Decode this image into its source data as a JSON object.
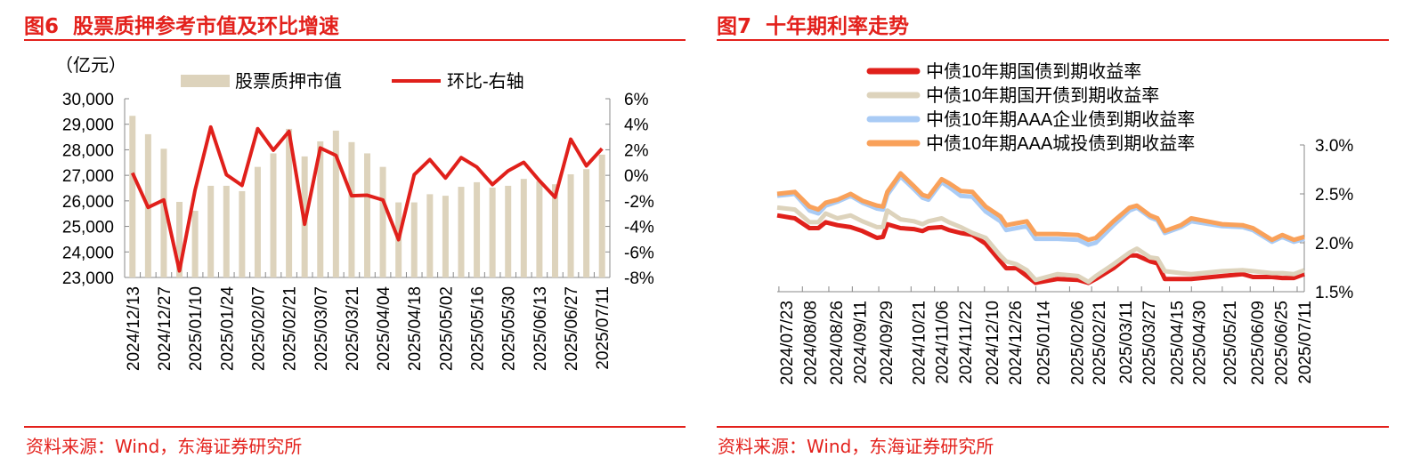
{
  "left": {
    "title": "图6  股票质押参考市值及环比增速",
    "source": "资料来源：Wind，东海证券研究所"
  },
  "right": {
    "title": "图7  十年期利率走势",
    "source": "资料来源：Wind，东海证券研究所"
  },
  "chart_data": [
    {
      "type": "bar+line",
      "unit_label": "（亿元）",
      "categories": [
        "2024/12/13",
        "2024/12/20",
        "2024/12/27",
        "2025/01/03",
        "2025/01/10",
        "2025/01/17",
        "2025/01/24",
        "2025/01/31",
        "2025/02/07",
        "2025/02/14",
        "2025/02/21",
        "2025/02/28",
        "2025/03/07",
        "2025/03/14",
        "2025/03/21",
        "2025/03/28",
        "2025/04/04",
        "2025/04/11",
        "2025/04/18",
        "2025/04/25",
        "2025/05/02",
        "2025/05/09",
        "2025/05/16",
        "2025/05/23",
        "2025/05/30",
        "2025/06/06",
        "2025/06/13",
        "2025/06/20",
        "2025/06/27",
        "2025/07/04",
        "2025/07/11"
      ],
      "tick_labels": [
        "2024/12/13",
        "2024/12/27",
        "2025/01/10",
        "2025/01/24",
        "2025/02/07",
        "2025/02/21",
        "2025/03/07",
        "2025/03/21",
        "2025/04/04",
        "2025/04/18",
        "2025/05/02",
        "2025/05/16",
        "2025/05/30",
        "2025/06/13",
        "2025/06/27",
        "2025/07/11"
      ],
      "series": [
        {
          "name": "股票质押市值",
          "axis": "left",
          "kind": "bar",
          "color": "#DDD3BC",
          "values": [
            29330,
            28610,
            28040,
            25960,
            25610,
            26590,
            26590,
            26380,
            27330,
            27860,
            28820,
            27740,
            28330,
            28750,
            28300,
            27860,
            27330,
            25940,
            25940,
            26260,
            26200,
            26550,
            26730,
            26520,
            26590,
            26860,
            26770,
            26650,
            27040,
            27240,
            27810
          ]
        },
        {
          "name": "环比-右轴",
          "axis": "right",
          "kind": "line",
          "color": "#E0201B",
          "values": [
            0.19,
            -2.51,
            -1.93,
            -7.48,
            -1.16,
            3.78,
            0.05,
            -0.79,
            3.65,
            1.97,
            3.44,
            -3.83,
            2.14,
            1.56,
            -1.6,
            -1.56,
            -1.93,
            -5.04,
            0.05,
            1.23,
            -0.21,
            1.39,
            0.65,
            -0.72,
            0.35,
            1.02,
            -0.42,
            -1.72,
            2.83,
            0.74,
            2.09
          ]
        }
      ],
      "y_left": {
        "range": [
          23000,
          30000
        ],
        "ticks": [
          "23,000",
          "24,000",
          "25,000",
          "26,000",
          "27,000",
          "28,000",
          "29,000",
          "30,000"
        ]
      },
      "y_right": {
        "range": [
          -8,
          6
        ],
        "ticks": [
          "-8%",
          "-6%",
          "-4%",
          "-2%",
          "0%",
          "2%",
          "4%",
          "6%"
        ]
      },
      "legend": "top",
      "grid": false
    },
    {
      "type": "line",
      "x": [
        "2024-07-17",
        "2024-07-29",
        "2024-08-08",
        "2024-08-14",
        "2024-08-19",
        "2024-08-27",
        "2024-09-05",
        "2024-09-13",
        "2024-09-23",
        "2024-09-27",
        "2024-09-30",
        "2024-10-09",
        "2024-10-18",
        "2024-10-24",
        "2024-10-28",
        "2024-11-06",
        "2024-11-11",
        "2024-11-19",
        "2024-11-27",
        "2024-12-06",
        "2024-12-16",
        "2024-12-20",
        "2024-12-27",
        "2025-01-03",
        "2025-01-09",
        "2025-01-24",
        "2025-02-07",
        "2025-02-14",
        "2025-02-19",
        "2025-03-03",
        "2025-03-14",
        "2025-03-19",
        "2025-03-28",
        "2025-04-02",
        "2025-04-07",
        "2025-04-18",
        "2025-04-25",
        "2025-05-16",
        "2025-05-30",
        "2025-06-06",
        "2025-06-19",
        "2025-06-26",
        "2025-07-04",
        "2025-07-11"
      ],
      "tick_labels": [
        "2024/07/23",
        "2024/08/08",
        "2024/08/26",
        "2024/09/11",
        "2024/09/29",
        "2024/10/21",
        "2024/11/06",
        "2024/11/22",
        "2024/12/10",
        "2024/12/26",
        "2025/01/14",
        "2025/02/06",
        "2025/02/21",
        "2025/03/11",
        "2025/03/27",
        "2025/04/15",
        "2025/04/30",
        "2025/05/21",
        "2025/06/09",
        "2025/06/25",
        "2025/07/11"
      ],
      "series": [
        {
          "name": "中债10年期国债到期收益率",
          "color": "#E0201B",
          "values": [
            2.28,
            2.25,
            2.15,
            2.15,
            2.21,
            2.18,
            2.16,
            2.12,
            2.05,
            2.06,
            2.19,
            2.15,
            2.14,
            2.12,
            2.15,
            2.16,
            2.13,
            2.1,
            2.08,
            1.99,
            1.81,
            1.74,
            1.74,
            1.66,
            1.59,
            1.63,
            1.62,
            1.59,
            1.63,
            1.74,
            1.87,
            1.87,
            1.81,
            1.79,
            1.63,
            1.63,
            1.63,
            1.66,
            1.68,
            1.65,
            1.65,
            1.64,
            1.64,
            1.68
          ]
        },
        {
          "name": "中债10年期国开债到期收益率",
          "color": "#DDD3BC",
          "values": [
            2.36,
            2.34,
            2.21,
            2.21,
            2.3,
            2.25,
            2.28,
            2.22,
            2.16,
            2.16,
            2.33,
            2.24,
            2.22,
            2.19,
            2.22,
            2.25,
            2.21,
            2.16,
            2.1,
            2.05,
            1.87,
            1.81,
            1.78,
            1.72,
            1.62,
            1.68,
            1.66,
            1.6,
            1.66,
            1.78,
            1.9,
            1.94,
            1.85,
            1.84,
            1.71,
            1.69,
            1.68,
            1.71,
            1.72,
            1.71,
            1.69,
            1.69,
            1.68,
            1.72
          ]
        },
        {
          "name": "中债10年期AAA企业债到期收益率",
          "color": "#A9CBF5",
          "values": [
            2.48,
            2.5,
            2.33,
            2.3,
            2.38,
            2.42,
            2.48,
            2.41,
            2.35,
            2.34,
            2.49,
            2.68,
            2.55,
            2.46,
            2.44,
            2.62,
            2.57,
            2.48,
            2.47,
            2.32,
            2.22,
            2.13,
            2.15,
            2.17,
            2.04,
            2.04,
            2.03,
            1.98,
            2.0,
            2.18,
            2.33,
            2.36,
            2.26,
            2.23,
            2.1,
            2.16,
            2.22,
            2.17,
            2.16,
            2.13,
            2.01,
            2.06,
            2.01,
            2.04
          ]
        },
        {
          "name": "中债10年期AAA城投债到期收益率",
          "color": "#F9A15A",
          "values": [
            2.5,
            2.52,
            2.37,
            2.34,
            2.41,
            2.44,
            2.5,
            2.43,
            2.38,
            2.37,
            2.52,
            2.71,
            2.58,
            2.49,
            2.47,
            2.65,
            2.61,
            2.53,
            2.52,
            2.37,
            2.27,
            2.18,
            2.2,
            2.22,
            2.09,
            2.09,
            2.08,
            2.03,
            2.05,
            2.22,
            2.36,
            2.38,
            2.28,
            2.25,
            2.12,
            2.18,
            2.25,
            2.19,
            2.18,
            2.15,
            2.03,
            2.08,
            2.03,
            2.06
          ]
        }
      ],
      "y_right": {
        "range": [
          1.5,
          3.0
        ],
        "ticks": [
          "1.5%",
          "2.0%",
          "2.5%",
          "3.0%"
        ]
      },
      "legend": "top-left",
      "grid": false
    }
  ]
}
